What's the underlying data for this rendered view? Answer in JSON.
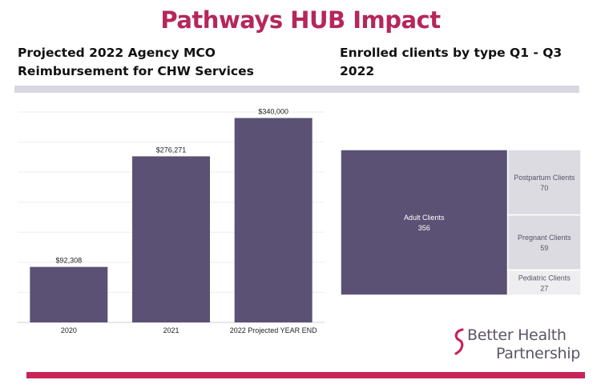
{
  "header": {
    "title": "Pathways HUB Impact",
    "left_subtitle": "Projected 2022 Agency MCO Reimbursement for CHW Services",
    "right_subtitle": "Enrolled clients by type Q1 - Q3 2022"
  },
  "colors": {
    "title": "#b5275b",
    "bar": "#5b5175",
    "treemap_large": "#5b5175",
    "treemap_mid": "#dcdbe2",
    "treemap_light": "#eeeef1",
    "bottom_rule": "#c72457",
    "top_rule": "#d9d8e2"
  },
  "logo": {
    "line1": "Better Health",
    "line2": "Partnership",
    "icon": "s-swoosh-logo-icon"
  },
  "chart_data": [
    {
      "type": "bar",
      "categories": [
        "2020",
        "2021",
        "2022 Projected YEAR END"
      ],
      "values": [
        92308,
        276271,
        340000
      ],
      "data_labels": [
        "$92,308",
        "$276,271",
        "$340,000"
      ],
      "title": "Projected 2022 Agency MCO Reimbursement for CHW Services",
      "xlabel": "",
      "ylabel": "",
      "ylim": [
        0,
        350000
      ],
      "grid": true
    },
    {
      "type": "treemap",
      "title": "Enrolled clients by type Q1 - Q3 2022",
      "categories": [
        "Adult Clients",
        "Postpartum Clients",
        "Pregnant Clients",
        "Pediatric Clients"
      ],
      "values": [
        356,
        70,
        59,
        27
      ]
    }
  ]
}
